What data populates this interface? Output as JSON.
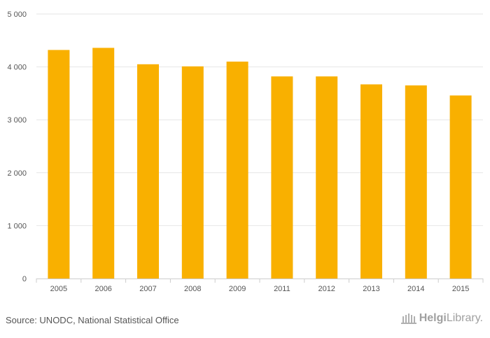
{
  "chart_data": {
    "type": "bar",
    "categories": [
      "2005",
      "2006",
      "2007",
      "2008",
      "2009",
      "2011",
      "2012",
      "2013",
      "2014",
      "2015"
    ],
    "values": [
      4320,
      4360,
      4050,
      4010,
      4100,
      3820,
      3820,
      3670,
      3650,
      3460
    ],
    "ylim": [
      0,
      5000
    ],
    "yticks": [
      0,
      1000,
      2000,
      3000,
      4000,
      5000
    ],
    "ytick_labels": [
      "0",
      "1 000",
      "2 000",
      "3 000",
      "4 000",
      "5 000"
    ],
    "grid": true,
    "bar_color": "#f9b000"
  },
  "footer": {
    "source": "Source: UNODC, National Statistical Office",
    "logo_part1": "Helgi",
    "logo_part2": "Library."
  }
}
